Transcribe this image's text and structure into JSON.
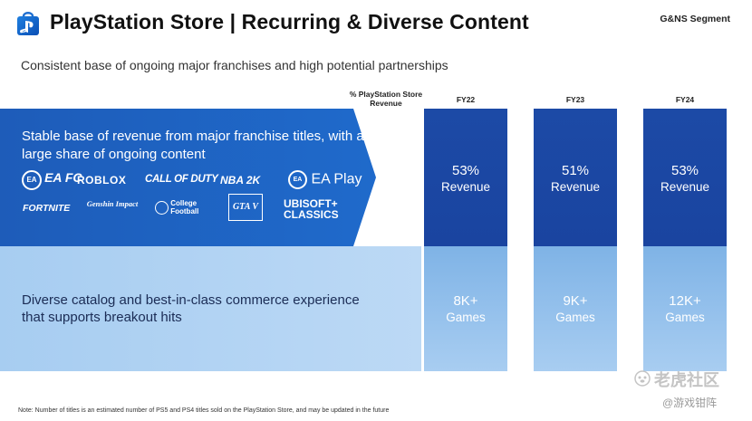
{
  "header": {
    "title": "PlayStation Store | Recurring & Diverse Content",
    "segment": "G&NS Segment",
    "subtitle": "Consistent base of ongoing major franchises and high potential partnerships"
  },
  "columns": {
    "label": "% PlayStation Store Revenue",
    "years": [
      "FY22",
      "FY23",
      "FY24"
    ]
  },
  "top_row": {
    "description": "Stable base of revenue from major franchise titles, with a large share of ongoing content",
    "brands": [
      "EA FC",
      "ROBLOX",
      "CALL OF DUTY",
      "NBA 2K",
      "EA Play",
      "FORTNITE",
      "Genshin Impact",
      "College Football",
      "GTA V",
      "UBISOFT+ CLASSICS"
    ],
    "values": [
      {
        "value": "53%",
        "label": "Revenue"
      },
      {
        "value": "51%",
        "label": "Revenue"
      },
      {
        "value": "53%",
        "label": "Revenue"
      }
    ]
  },
  "bottom_row": {
    "description": "Diverse catalog and best-in-class commerce experience that supports breakout hits",
    "values": [
      {
        "value": "8K+",
        "label": "Games"
      },
      {
        "value": "9K+",
        "label": "Games"
      },
      {
        "value": "12K+",
        "label": "Games"
      }
    ]
  },
  "footnote": "Note: Number of titles is an estimated number of PS5 and PS4 titles sold on the PlayStation Store, and may be updated in the future",
  "watermark": {
    "line1": "老虎社区",
    "line2": "@游戏钳阵"
  },
  "colors": {
    "band_top": "#1e5bb9",
    "column_top": "#1c4aa6",
    "band_bottom": "#a7cdf1",
    "column_bottom": "#7fb3e6"
  }
}
